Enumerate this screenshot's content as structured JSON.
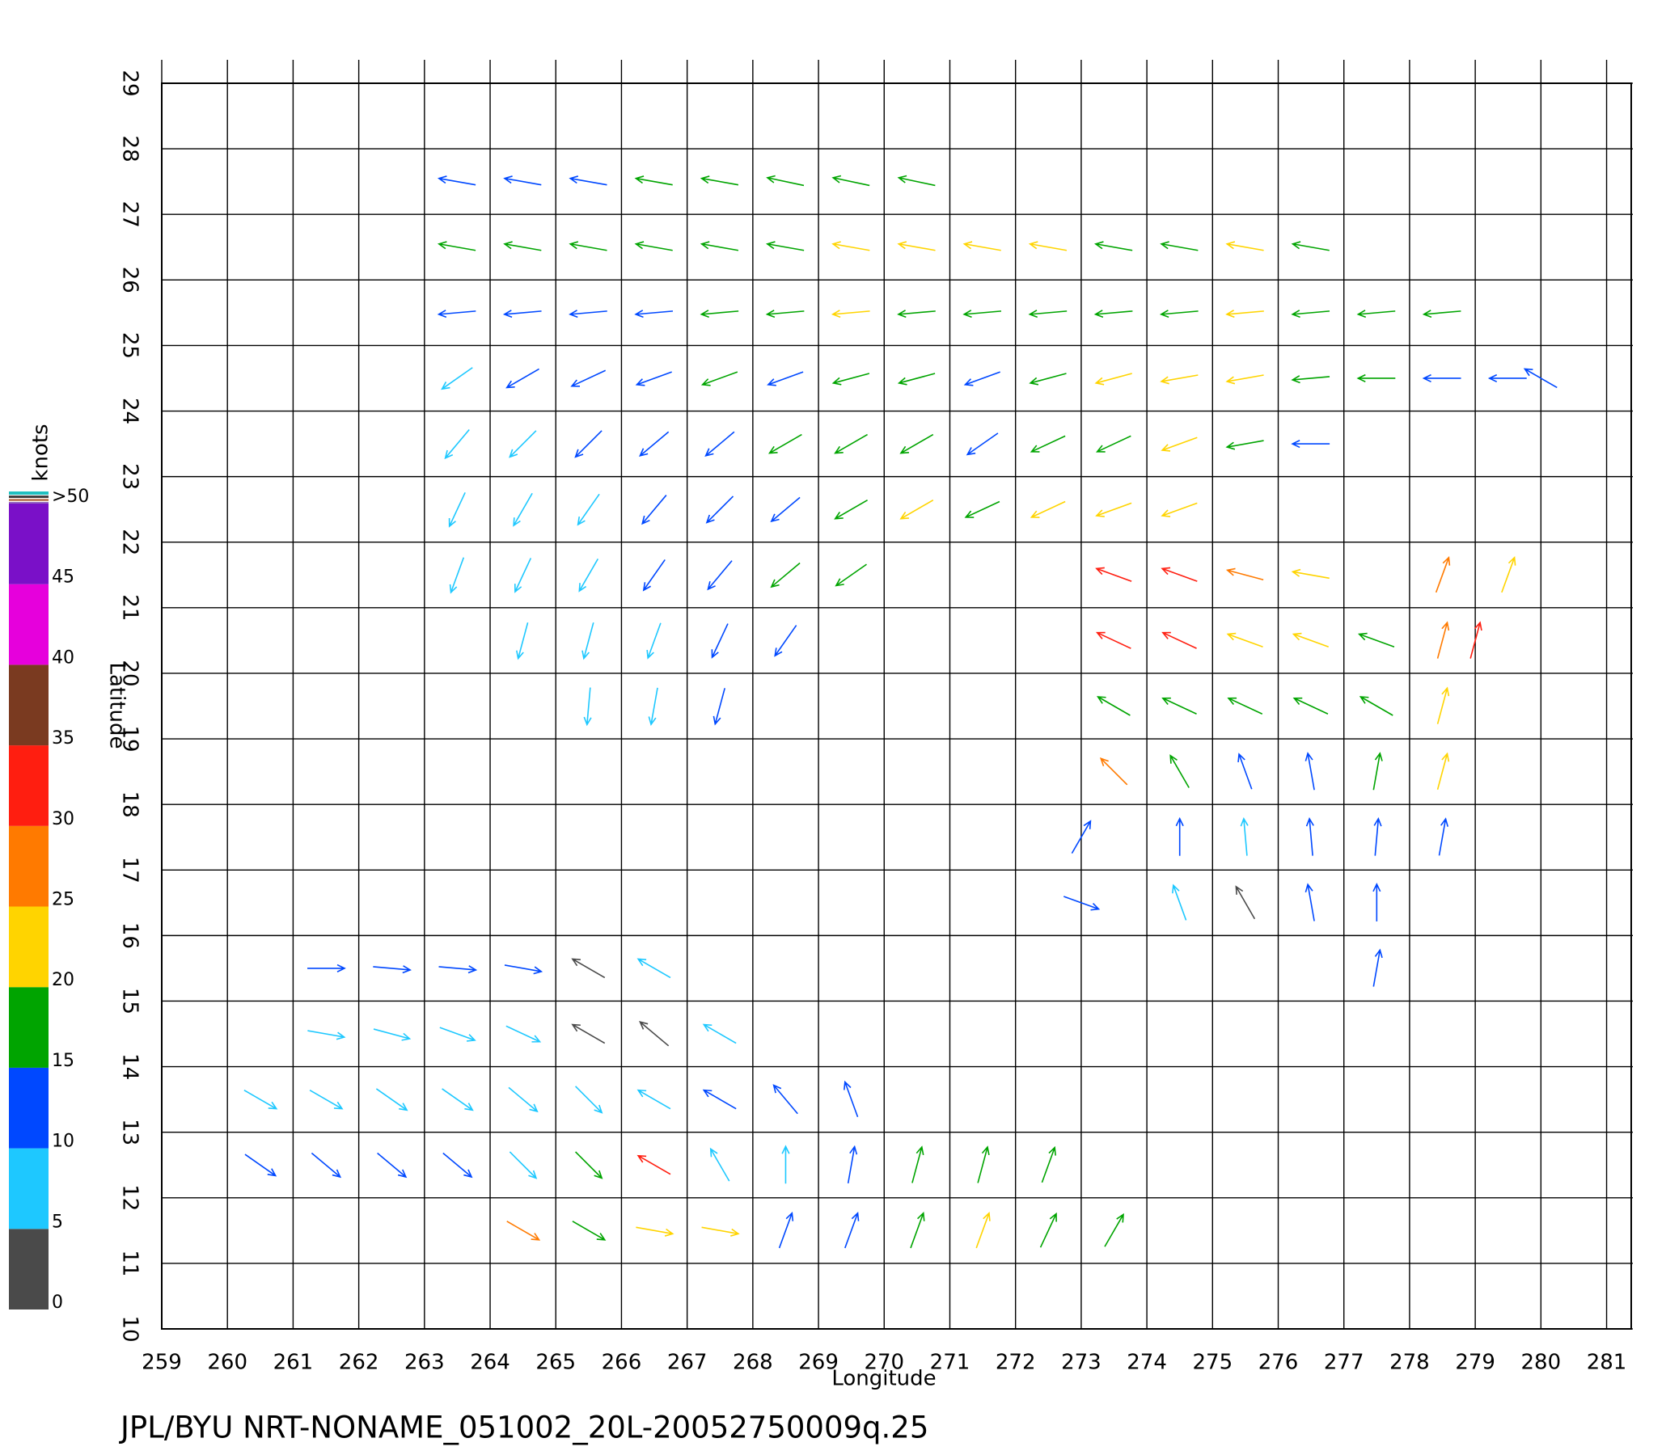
{
  "chart_data": {
    "type": "vector",
    "title": "JPL/BYU NRT-NONAME_051002_20L-20052750009q.25",
    "xlabel": "Longitude",
    "ylabel": "Latitude",
    "xlim": [
      259,
      281.375
    ],
    "ylim": [
      10,
      29
    ],
    "xticks": [
      259,
      260,
      261,
      262,
      263,
      264,
      265,
      266,
      267,
      268,
      269,
      270,
      271,
      272,
      273,
      274,
      275,
      276,
      277,
      278,
      279,
      280,
      281
    ],
    "yticks": [
      10,
      11,
      12,
      13,
      14,
      15,
      16,
      17,
      18,
      19,
      20,
      21,
      22,
      23,
      24,
      25,
      26,
      27,
      28,
      29
    ],
    "grid": true,
    "colorbar": {
      "label": "knots",
      "ticks": [
        0,
        5,
        10,
        15,
        20,
        25,
        30,
        35,
        40,
        45,
        {
          "value": 50,
          "label": ">50"
        }
      ],
      "colors": [
        "#4a4a4a",
        "#1ec8ff",
        "#0048ff",
        "#00a400",
        "#ffd400",
        "#ff7a00",
        "#ff1e10",
        "#7a3a20",
        "#e600dc",
        "#7a10c8"
      ]
    },
    "vectors": [
      [
        263.5,
        27.5,
        12,
        280
      ],
      [
        264.5,
        27.5,
        12,
        280
      ],
      [
        265.5,
        27.5,
        14,
        280
      ],
      [
        266.5,
        27.5,
        16,
        280
      ],
      [
        267.5,
        27.5,
        17,
        280
      ],
      [
        268.5,
        27.5,
        17,
        282
      ],
      [
        269.5,
        27.5,
        17,
        282
      ],
      [
        270.5,
        27.5,
        18,
        282
      ],
      [
        263.5,
        26.5,
        17,
        280
      ],
      [
        264.5,
        26.5,
        17,
        280
      ],
      [
        265.5,
        26.5,
        16,
        280
      ],
      [
        266.5,
        26.5,
        16,
        280
      ],
      [
        267.5,
        26.5,
        17,
        280
      ],
      [
        268.5,
        26.5,
        18,
        280
      ],
      [
        269.5,
        26.5,
        21,
        280
      ],
      [
        270.5,
        26.5,
        22,
        280
      ],
      [
        271.5,
        26.5,
        24,
        280
      ],
      [
        272.5,
        26.5,
        21,
        280
      ],
      [
        273.5,
        26.5,
        18,
        280
      ],
      [
        274.5,
        26.5,
        18,
        280
      ],
      [
        275.5,
        26.5,
        22,
        280
      ],
      [
        276.5,
        26.5,
        17,
        280
      ],
      [
        263.5,
        25.5,
        12,
        265
      ],
      [
        264.5,
        25.5,
        13,
        265
      ],
      [
        265.5,
        25.5,
        13,
        265
      ],
      [
        266.5,
        25.5,
        14,
        265
      ],
      [
        267.5,
        25.5,
        16,
        265
      ],
      [
        268.5,
        25.5,
        17,
        265
      ],
      [
        269.5,
        25.5,
        21,
        265
      ],
      [
        270.5,
        25.5,
        18,
        265
      ],
      [
        271.5,
        25.5,
        18,
        265
      ],
      [
        272.5,
        25.5,
        19,
        265
      ],
      [
        273.5,
        25.5,
        18,
        265
      ],
      [
        274.5,
        25.5,
        18,
        265
      ],
      [
        275.5,
        25.5,
        21,
        265
      ],
      [
        276.5,
        25.5,
        18,
        265
      ],
      [
        277.5,
        25.5,
        17,
        265
      ],
      [
        278.5,
        25.5,
        16,
        265
      ],
      [
        263.5,
        24.5,
        9,
        235
      ],
      [
        264.5,
        24.5,
        12,
        240
      ],
      [
        265.5,
        24.5,
        13,
        245
      ],
      [
        266.5,
        24.5,
        14,
        250
      ],
      [
        267.5,
        24.5,
        16,
        250
      ],
      [
        268.5,
        24.5,
        13,
        250
      ],
      [
        269.5,
        24.5,
        16,
        255
      ],
      [
        270.5,
        24.5,
        16,
        255
      ],
      [
        271.5,
        24.5,
        14,
        250
      ],
      [
        272.5,
        24.5,
        18,
        255
      ],
      [
        273.5,
        24.5,
        21,
        255
      ],
      [
        274.5,
        24.5,
        22,
        260
      ],
      [
        275.5,
        24.5,
        21,
        260
      ],
      [
        276.5,
        24.5,
        17,
        265
      ],
      [
        277.5,
        24.5,
        16,
        270
      ],
      [
        278.5,
        24.5,
        14,
        270
      ],
      [
        279.5,
        24.5,
        12,
        270
      ],
      [
        280,
        24.5,
        13,
        300
      ],
      [
        263.5,
        23.5,
        8,
        220
      ],
      [
        264.5,
        23.5,
        9,
        225
      ],
      [
        265.5,
        23.5,
        12,
        225
      ],
      [
        266.5,
        23.5,
        13,
        230
      ],
      [
        267.5,
        23.5,
        13,
        230
      ],
      [
        268.5,
        23.5,
        16,
        240
      ],
      [
        269.5,
        23.5,
        16,
        240
      ],
      [
        270.5,
        23.5,
        17,
        240
      ],
      [
        271.5,
        23.5,
        14,
        235
      ],
      [
        272.5,
        23.5,
        18,
        245
      ],
      [
        273.5,
        23.5,
        17,
        245
      ],
      [
        274.5,
        23.5,
        20,
        250
      ],
      [
        275.5,
        23.5,
        16,
        260
      ],
      [
        276.5,
        23.5,
        14,
        270
      ],
      [
        263.5,
        22.5,
        8,
        205
      ],
      [
        264.5,
        22.5,
        8,
        210
      ],
      [
        265.5,
        22.5,
        9,
        215
      ],
      [
        266.5,
        22.5,
        13,
        220
      ],
      [
        267.5,
        22.5,
        13,
        225
      ],
      [
        268.5,
        22.5,
        14,
        230
      ],
      [
        269.5,
        22.5,
        17,
        240
      ],
      [
        270.5,
        22.5,
        21,
        240
      ],
      [
        271.5,
        22.5,
        18,
        245
      ],
      [
        272.5,
        22.5,
        21,
        245
      ],
      [
        273.5,
        22.5,
        21,
        250
      ],
      [
        274.5,
        22.5,
        20,
        250
      ],
      [
        263.5,
        21.5,
        8,
        200
      ],
      [
        264.5,
        21.5,
        8,
        205
      ],
      [
        265.5,
        21.5,
        9,
        210
      ],
      [
        266.5,
        21.5,
        12,
        215
      ],
      [
        267.5,
        21.5,
        13,
        220
      ],
      [
        268.5,
        21.5,
        16,
        230
      ],
      [
        269.5,
        21.5,
        17,
        235
      ],
      [
        264.5,
        20.5,
        8,
        195
      ],
      [
        265.5,
        20.5,
        9,
        195
      ],
      [
        266.5,
        20.5,
        9,
        200
      ],
      [
        267.5,
        20.5,
        12,
        205
      ],
      [
        268.5,
        20.5,
        14,
        215
      ],
      [
        265.5,
        19.5,
        8,
        185
      ],
      [
        266.5,
        19.5,
        8,
        190
      ],
      [
        267.5,
        19.5,
        12,
        195
      ],
      [
        273.5,
        21.5,
        31,
        290
      ],
      [
        274.5,
        21.5,
        33,
        290
      ],
      [
        275.5,
        21.5,
        27,
        285
      ],
      [
        276.5,
        21.5,
        22,
        280
      ],
      [
        278.5,
        21.5,
        27,
        20
      ],
      [
        279.5,
        21.5,
        22,
        20
      ],
      [
        273.5,
        20.5,
        32,
        295
      ],
      [
        274.5,
        20.5,
        30,
        295
      ],
      [
        275.5,
        20.5,
        24,
        290
      ],
      [
        276.5,
        20.5,
        22,
        290
      ],
      [
        277.5,
        20.5,
        18,
        290
      ],
      [
        278.5,
        20.5,
        27,
        15
      ],
      [
        279,
        20.5,
        32,
        15
      ],
      [
        273.5,
        19.5,
        17,
        300
      ],
      [
        274.5,
        19.5,
        18,
        295
      ],
      [
        275.5,
        19.5,
        17,
        295
      ],
      [
        276.5,
        19.5,
        19,
        295
      ],
      [
        277.5,
        19.5,
        16,
        300
      ],
      [
        278.5,
        19.5,
        24,
        15
      ],
      [
        273.5,
        18.5,
        27,
        315
      ],
      [
        274.5,
        18.5,
        17,
        330
      ],
      [
        275.5,
        18.5,
        12,
        340
      ],
      [
        276.5,
        18.5,
        12,
        350
      ],
      [
        277.5,
        18.5,
        17,
        10
      ],
      [
        278.5,
        18.5,
        22,
        15
      ],
      [
        273,
        17.5,
        12,
        30
      ],
      [
        274.5,
        17.5,
        12,
        0
      ],
      [
        275.5,
        17.5,
        9,
        355
      ],
      [
        276.5,
        17.5,
        12,
        355
      ],
      [
        277.5,
        17.5,
        12,
        5
      ],
      [
        278.5,
        17.5,
        12,
        10
      ],
      [
        273,
        16.5,
        12,
        110
      ],
      [
        274.5,
        16.5,
        9,
        340
      ],
      [
        275.5,
        16.5,
        3,
        330
      ],
      [
        276.5,
        16.5,
        12,
        350
      ],
      [
        277.5,
        16.5,
        12,
        0
      ],
      [
        277.5,
        15.5,
        12,
        10
      ],
      [
        261.5,
        15.5,
        12,
        90
      ],
      [
        262.5,
        15.5,
        12,
        95
      ],
      [
        263.5,
        15.5,
        12,
        95
      ],
      [
        264.5,
        15.5,
        12,
        100
      ],
      [
        265.5,
        15.5,
        4,
        300
      ],
      [
        266.5,
        15.5,
        8,
        300
      ],
      [
        261.5,
        14.5,
        9,
        100
      ],
      [
        262.5,
        14.5,
        9,
        105
      ],
      [
        263.5,
        14.5,
        9,
        110
      ],
      [
        264.5,
        14.5,
        9,
        115
      ],
      [
        265.5,
        14.5,
        4,
        300
      ],
      [
        266.5,
        14.5,
        4,
        310
      ],
      [
        267.5,
        14.5,
        8,
        300
      ],
      [
        260.5,
        13.5,
        9,
        120
      ],
      [
        261.5,
        13.5,
        9,
        120
      ],
      [
        262.5,
        13.5,
        9,
        125
      ],
      [
        263.5,
        13.5,
        9,
        125
      ],
      [
        264.5,
        13.5,
        9,
        130
      ],
      [
        265.5,
        13.5,
        8,
        135
      ],
      [
        266.5,
        13.5,
        7,
        300
      ],
      [
        267.5,
        13.5,
        12,
        300
      ],
      [
        268.5,
        13.5,
        12,
        320
      ],
      [
        269.5,
        13.5,
        12,
        340
      ],
      [
        260.5,
        12.5,
        12,
        125
      ],
      [
        261.5,
        12.5,
        12,
        130
      ],
      [
        262.5,
        12.5,
        12,
        130
      ],
      [
        263.5,
        12.5,
        12,
        130
      ],
      [
        264.5,
        12.5,
        9,
        135
      ],
      [
        265.5,
        12.5,
        17,
        135
      ],
      [
        266.5,
        12.5,
        31,
        300
      ],
      [
        267.5,
        12.5,
        9,
        330
      ],
      [
        268.5,
        12.5,
        9,
        0
      ],
      [
        269.5,
        12.5,
        12,
        10
      ],
      [
        270.5,
        12.5,
        17,
        15
      ],
      [
        271.5,
        12.5,
        17,
        15
      ],
      [
        272.5,
        12.5,
        17,
        20
      ],
      [
        264.5,
        11.5,
        29,
        120
      ],
      [
        265.5,
        11.5,
        17,
        120
      ],
      [
        266.5,
        11.5,
        22,
        100
      ],
      [
        267.5,
        11.5,
        22,
        100
      ],
      [
        268.5,
        11.5,
        12,
        20
      ],
      [
        269.5,
        11.5,
        12,
        20
      ],
      [
        270.5,
        11.5,
        17,
        20
      ],
      [
        271.5,
        11.5,
        22,
        20
      ],
      [
        272.5,
        11.5,
        17,
        25
      ],
      [
        273.5,
        11.5,
        17,
        30
      ]
    ]
  }
}
